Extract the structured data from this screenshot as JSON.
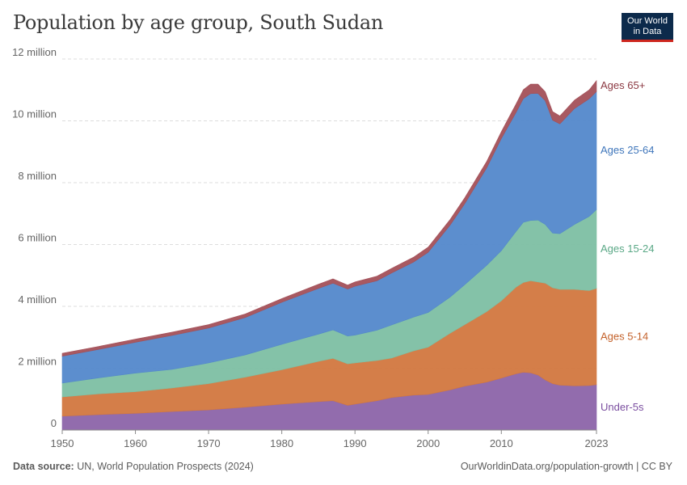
{
  "title": "Population by age group, South Sudan",
  "logo": {
    "line1": "Our World",
    "line2": "in Data"
  },
  "footer": {
    "source_label": "Data source:",
    "source_text": "UN, World Population Prospects (2024)",
    "credit": "OurWorldinData.org/population-growth | CC BY"
  },
  "colors": {
    "under5": "#8c64a9",
    "ages5_14": "#d2773f",
    "ages15_24": "#7dbfa3",
    "ages25_64": "#5388cb",
    "ages65": "#a35059"
  },
  "chart_data": {
    "type": "area",
    "stacked": true,
    "title": "Population by age group, South Sudan",
    "x_ticks": [
      "1950",
      "1960",
      "1970",
      "1980",
      "1990",
      "2000",
      "2010",
      "2023"
    ],
    "y_ticks": [
      "0",
      "2 million",
      "4 million",
      "6 million",
      "8 million",
      "10 million",
      "12 million"
    ],
    "xlim": [
      1950,
      2023
    ],
    "ylim": [
      0,
      12000000
    ],
    "grid": "horizontal dashed",
    "legend": "right, inline labels",
    "x": [
      1950,
      1955,
      1960,
      1965,
      1970,
      1975,
      1980,
      1985,
      1987,
      1989,
      1990,
      1993,
      1995,
      1998,
      2000,
      2003,
      2005,
      2008,
      2010,
      2012,
      2013,
      2014,
      2015,
      2016,
      2017,
      2018,
      2020,
      2022,
      2023
    ],
    "series": [
      {
        "name": "Under-5s",
        "color": "#8c64a9",
        "values": [
          450000,
          500000,
          540000,
          600000,
          650000,
          740000,
          840000,
          920000,
          950000,
          800000,
          840000,
          950000,
          1050000,
          1130000,
          1150000,
          1300000,
          1420000,
          1550000,
          1680000,
          1820000,
          1870000,
          1850000,
          1780000,
          1620000,
          1500000,
          1450000,
          1430000,
          1440000,
          1470000
        ]
      },
      {
        "name": "Ages 5-14",
        "color": "#d2773f",
        "values": [
          620000,
          670000,
          700000,
          760000,
          850000,
          970000,
          1110000,
          1300000,
          1370000,
          1340000,
          1330000,
          1300000,
          1280000,
          1430000,
          1530000,
          1830000,
          1990000,
          2280000,
          2500000,
          2800000,
          2900000,
          2980000,
          3010000,
          3130000,
          3100000,
          3100000,
          3120000,
          3070000,
          3110000
        ]
      },
      {
        "name": "Ages 15-24",
        "color": "#7dbfa3",
        "values": [
          450000,
          520000,
          600000,
          600000,
          670000,
          720000,
          820000,
          880000,
          920000,
          900000,
          900000,
          980000,
          1070000,
          1090000,
          1120000,
          1170000,
          1290000,
          1500000,
          1620000,
          1800000,
          1950000,
          1950000,
          2000000,
          1900000,
          1770000,
          1800000,
          2100000,
          2400000,
          2550000
        ]
      },
      {
        "name": "Ages 25-64",
        "color": "#5388cb",
        "values": [
          870000,
          920000,
          1000000,
          1100000,
          1130000,
          1210000,
          1360000,
          1480000,
          1510000,
          1520000,
          1580000,
          1600000,
          1680000,
          1780000,
          1950000,
          2330000,
          2620000,
          3150000,
          3630000,
          3850000,
          4000000,
          4100000,
          4100000,
          4000000,
          3650000,
          3550000,
          3750000,
          3800000,
          3820000
        ]
      },
      {
        "name": "Ages 65+",
        "color": "#a35059",
        "values": [
          90000,
          95000,
          100000,
          105000,
          110000,
          115000,
          120000,
          135000,
          140000,
          130000,
          140000,
          145000,
          150000,
          160000,
          165000,
          180000,
          190000,
          210000,
          220000,
          270000,
          290000,
          310000,
          300000,
          290000,
          280000,
          260000,
          270000,
          290000,
          350000
        ]
      }
    ]
  }
}
